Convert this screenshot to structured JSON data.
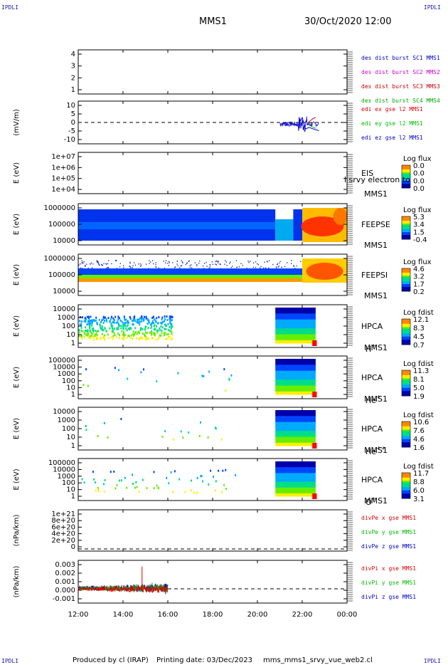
{
  "header": {
    "title": "MMS1",
    "datetime": "30/Oct/2020 12:00",
    "corner_label": "IPDLI"
  },
  "footer": {
    "produced_by": "Produced by cl (IRAP)",
    "printing_date": "Printing date: 03/Dec/2023",
    "script_name": "mms_mms1_srvy_vue_web2.cl"
  },
  "colors": {
    "mms1": "#0000cc",
    "mms2": "#cc00cc",
    "mms3": "#cc0000",
    "mms4": "#00aa00",
    "x": "#dd0000",
    "y": "#00bb00",
    "z": "#0000cc"
  },
  "chart_data": {
    "type": "stacked time-series and spectrograms",
    "x_axis": {
      "ticks": [
        "12:00",
        "14:00",
        "16:00",
        "18:00",
        "20:00",
        "22:00",
        "00:00"
      ],
      "range_hours": [
        12,
        24
      ]
    },
    "panels": [
      {
        "id": "des_dist",
        "type": "line",
        "ylabel": "",
        "ytick_labels": [
          "4",
          "3",
          "2",
          "1"
        ],
        "ylim": [
          0.6,
          4.4
        ],
        "legend": [
          {
            "text": "des dist burst SC1 MMS1",
            "color": "#0000cc"
          },
          {
            "text": "des dist burst SC2 MMS2",
            "color": "#cc00cc"
          },
          {
            "text": "des dist burst SC3 MMS3",
            "color": "#cc0000"
          },
          {
            "text": "des dist burst SC4 MMS4",
            "color": "#00aa00"
          }
        ]
      },
      {
        "id": "edi_e",
        "type": "line",
        "ylabel": "(mV/m)",
        "ytick_labels": [
          "10",
          "5",
          "0",
          "-5",
          "-10"
        ],
        "ylim": [
          -13,
          13
        ],
        "zero_line": true,
        "legend": [
          {
            "text": "edi ex gse l2 MMS1",
            "color": "#dd0000"
          },
          {
            "text": "edi ey gse l2 MMS1",
            "color": "#00bb00"
          },
          {
            "text": "edi ez gse l2 MMS1",
            "color": "#0000cc"
          }
        ],
        "data_window_hours": [
          21.0,
          22.75
        ],
        "series": [
          {
            "name": "edi ex gse l2 MMS1",
            "points": [
              [
                22.2,
                -1
              ],
              [
                22.35,
                1
              ],
              [
                22.5,
                2.5
              ],
              [
                22.6,
                3
              ]
            ]
          },
          {
            "name": "edi ey gse l2 MMS1",
            "points": [
              [
                22.2,
                -1
              ],
              [
                22.35,
                -2
              ],
              [
                22.5,
                -3
              ],
              [
                22.6,
                -3.5
              ]
            ]
          },
          {
            "name": "edi ez gse l2 MMS1",
            "points": [
              [
                21.0,
                -1
              ],
              [
                21.4,
                0
              ],
              [
                21.8,
                -2
              ],
              [
                22.0,
                3
              ],
              [
                22.15,
                -4
              ],
              [
                22.3,
                -3
              ],
              [
                22.5,
                -4
              ],
              [
                22.75,
                -5
              ]
            ]
          }
        ]
      },
      {
        "id": "eis",
        "type": "spectrogram",
        "ylabel": "E (eV)",
        "ytick_labels": [
          "1e+07",
          "1e+06",
          "1e+05",
          "1e+04"
        ],
        "instrument": "EIS",
        "spacecraft": "MMS1",
        "overlay_text": "l srvy electron to",
        "colorbar_title": "Log flux",
        "colorbar_ticks": [
          "0.0",
          "0.0",
          "0.0",
          "0.0"
        ]
      },
      {
        "id": "feeps_e",
        "type": "spectrogram",
        "ylabel": "E (eV)",
        "ytick_labels": [
          "1000000",
          "100000",
          "10000"
        ],
        "instrument": "FEEPSE",
        "spacecraft": "MMS1",
        "colorbar_title": "Log flux",
        "colorbar_ticks": [
          "5.3",
          "3.4",
          "1.5",
          "-0.4"
        ]
      },
      {
        "id": "feeps_i",
        "type": "spectrogram",
        "ylabel": "E (eV)",
        "ytick_labels": [
          "1000000",
          "100000",
          "10000"
        ],
        "instrument": "FEEPSI",
        "spacecraft": "MMS1",
        "colorbar_title": "Log flux",
        "colorbar_ticks": [
          "4.6",
          "3.2",
          "1.7",
          "0.2"
        ]
      },
      {
        "id": "hpca_h",
        "type": "spectrogram",
        "ylabel": "E (eV)",
        "ytick_labels": [
          "10000",
          "1000",
          "100",
          "10",
          "1"
        ],
        "instrument": "HPCA",
        "spacecraft": "MMS1",
        "species": "H",
        "charge": "+",
        "colorbar_title": "Log fdist",
        "colorbar_ticks": [
          "12.1",
          "8.3",
          "4.5",
          "0.7"
        ]
      },
      {
        "id": "hpca_he",
        "type": "spectrogram",
        "ylabel": "E (eV)",
        "ytick_labels": [
          "100000",
          "10000",
          "1000",
          "100",
          "10",
          "1"
        ],
        "instrument": "HPCA",
        "spacecraft": "MMS1",
        "species": "He",
        "charge": "+",
        "colorbar_title": "Log fdist",
        "colorbar_ticks": [
          "11.3",
          "8.1",
          "5.0",
          "1.9"
        ]
      },
      {
        "id": "hpca_he2",
        "type": "spectrogram",
        "ylabel": "E (eV)",
        "ytick_labels": [
          "10000",
          "1000",
          "100",
          "10",
          "1"
        ],
        "instrument": "HPCA",
        "spacecraft": "MMS1",
        "species": "He",
        "charge": "++",
        "colorbar_title": "Log fdist",
        "colorbar_ticks": [
          "10.6",
          "7.6",
          "4.6",
          "1.6"
        ]
      },
      {
        "id": "hpca_o",
        "type": "spectrogram",
        "ylabel": "E (eV)",
        "ytick_labels": [
          "100000",
          "10000",
          "1000",
          "100",
          "10",
          "1"
        ],
        "instrument": "HPCA",
        "spacecraft": "MMS1",
        "species": "O",
        "charge": "+",
        "colorbar_title": "Log fdist",
        "colorbar_ticks": [
          "11.7",
          "8.8",
          "6.0",
          "3.1"
        ]
      },
      {
        "id": "divpe",
        "type": "line",
        "ylabel": "(nPa/km)",
        "ytick_labels": [
          "1e+21",
          "8e+20",
          "6e+20",
          "4e+20",
          "2e+20",
          "0"
        ],
        "ylim": [
          -6e+19,
          1.12e+21
        ],
        "zero_line": true,
        "legend": [
          {
            "text": "divPe x gse MMS1",
            "color": "#dd0000"
          },
          {
            "text": "divPe y gse MMS1",
            "color": "#00bb00"
          },
          {
            "text": "divPe z gse MMS1",
            "color": "#0000cc"
          }
        ]
      },
      {
        "id": "divpi",
        "type": "line",
        "ylabel": "(nPa/km)",
        "ytick_labels": [
          "0.003",
          "0.002",
          "0.001",
          "0.000",
          "-0.001"
        ],
        "ylim": [
          -0.0016,
          0.0032
        ],
        "zero_line": true,
        "legend": [
          {
            "text": "divPi x gse MMS1",
            "color": "#dd0000"
          },
          {
            "text": "divPi y gse MMS1",
            "color": "#00bb00"
          },
          {
            "text": "divPi z gse MMS1",
            "color": "#0000cc"
          }
        ],
        "data_window_hours": [
          12.0,
          16.0
        ],
        "series": [
          {
            "name": "divPi x gse MMS1",
            "spike": [
              14.85,
              0.0025
            ]
          },
          {
            "name": "divPi y gse MMS1",
            "spike": [
              15.3,
              0.0007
            ]
          },
          {
            "name": "divPi z gse MMS1",
            "spike": [
              15.9,
              -0.0006
            ]
          }
        ]
      }
    ]
  }
}
